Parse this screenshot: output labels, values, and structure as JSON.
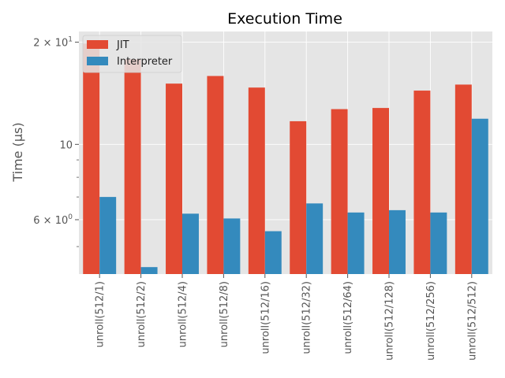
{
  "chart_data": {
    "type": "bar",
    "title": "Execution Time",
    "xlabel": "",
    "ylabel": "Time (µs)",
    "yscale": "log",
    "ylim": [
      4.15,
      21.5
    ],
    "y_ticks": [
      {
        "value": 6,
        "label": "6 × 10",
        "exponent": "0"
      },
      {
        "value": 10,
        "label": "10",
        "exponent": ""
      },
      {
        "value": 20,
        "label": "2 × 10",
        "exponent": "1"
      }
    ],
    "categories": [
      "unroll(512/1)",
      "unroll(512/2)",
      "unroll(512/4)",
      "unroll(512/8)",
      "unroll(512/16)",
      "unroll(512/32)",
      "unroll(512/64)",
      "unroll(512/128)",
      "unroll(512/256)",
      "unroll(512/512)"
    ],
    "series": [
      {
        "name": "JIT",
        "color": "#E24A33",
        "values": [
          19.8,
          17.8,
          15.1,
          15.9,
          14.7,
          11.7,
          12.7,
          12.8,
          14.4,
          15.0
        ]
      },
      {
        "name": "Interpreter",
        "color": "#348ABD",
        "values": [
          7.0,
          4.35,
          6.25,
          6.05,
          5.55,
          6.7,
          6.3,
          6.4,
          6.3,
          11.9
        ]
      }
    ],
    "grid": true,
    "legend_position": "top-left"
  },
  "style": {
    "plot_background": "#E5E5E5",
    "grid_color": "#FFFFFF",
    "tick_color": "#555555"
  }
}
